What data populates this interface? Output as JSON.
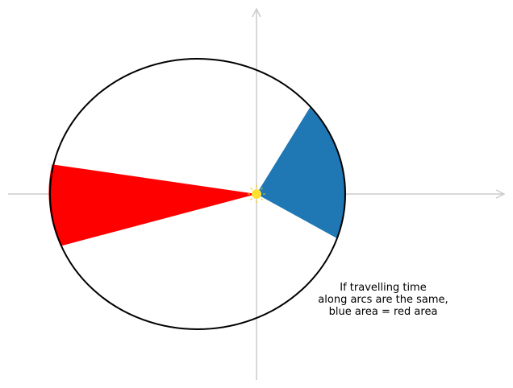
{
  "diagram": {
    "annotation_lines": [
      "If travelling time",
      "along arcs are the same,",
      "blue area = red area"
    ],
    "colors": {
      "blue_sector": "#1f77b4",
      "red_sector": "#ff0000",
      "orbit": "#000000",
      "axes": "#cccccc",
      "sun": "#ffe033",
      "sun_rays": "#e8c800"
    },
    "icons": {
      "sun": "sun-icon"
    }
  }
}
